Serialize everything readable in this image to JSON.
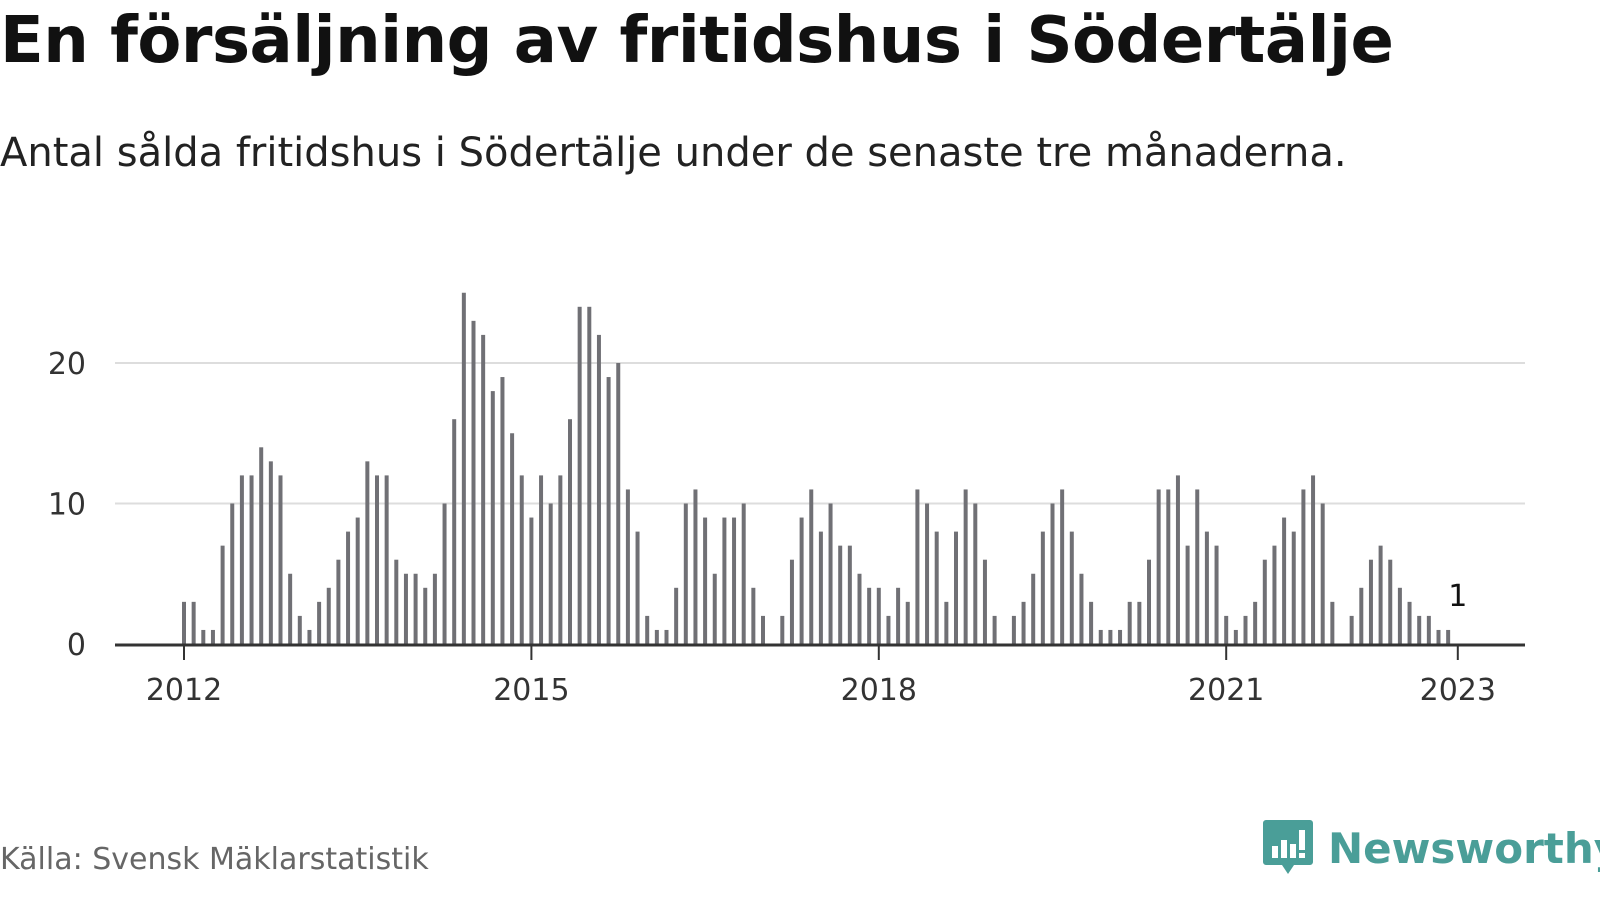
{
  "title": "En försäljning av fritidshus i Södertälje",
  "subtitle": "Antal sålda fritidshus i Södertälje under de senaste tre månaderna.",
  "source": "Källa: Svensk Mäklarstatistik",
  "brand": {
    "name": "Newsworthy",
    "icon": "newsworthy-logo-icon",
    "color": "#4a9e98"
  },
  "colors": {
    "bar": "#707075",
    "highlight": "#20a69a",
    "grid": "#dddddd",
    "axis": "#333333"
  },
  "chart_data": {
    "type": "bar",
    "title": "En försäljning av fritidshus i Södertälje",
    "xlabel": "",
    "ylabel": "",
    "ylim": [
      0,
      25
    ],
    "yticks": [
      0,
      10,
      20
    ],
    "grid": true,
    "start": {
      "year": 2012,
      "month": 1
    },
    "xticks": [
      {
        "label": "2012",
        "year": 2012,
        "month": 1
      },
      {
        "label": "2015",
        "year": 2015,
        "month": 1
      },
      {
        "label": "2018",
        "year": 2018,
        "month": 1
      },
      {
        "label": "2021",
        "year": 2021,
        "month": 1
      },
      {
        "label": "2023",
        "year": 2023,
        "month": 1
      }
    ],
    "values": [
      3,
      3,
      1,
      1,
      7,
      10,
      12,
      12,
      14,
      13,
      12,
      5,
      2,
      1,
      3,
      4,
      6,
      8,
      9,
      13,
      12,
      12,
      6,
      5,
      5,
      4,
      5,
      10,
      16,
      25,
      23,
      22,
      18,
      19,
      15,
      12,
      9,
      12,
      10,
      12,
      16,
      24,
      24,
      22,
      19,
      20,
      11,
      8,
      2,
      1,
      1,
      4,
      10,
      11,
      9,
      5,
      9,
      9,
      10,
      4,
      2,
      0,
      2,
      6,
      9,
      11,
      8,
      10,
      7,
      7,
      5,
      4,
      4,
      2,
      4,
      3,
      11,
      10,
      8,
      3,
      8,
      11,
      10,
      6,
      2,
      0,
      2,
      3,
      5,
      8,
      10,
      11,
      8,
      5,
      3,
      1,
      1,
      1,
      3,
      3,
      6,
      11,
      11,
      12,
      7,
      11,
      8,
      7,
      2,
      1,
      2,
      3,
      6,
      7,
      9,
      8,
      11,
      12,
      10,
      3,
      0,
      2,
      4,
      6,
      7,
      6,
      4,
      3,
      2,
      2,
      1,
      1
    ],
    "highlight": {
      "index": 132,
      "label": "1",
      "value": 1
    }
  }
}
